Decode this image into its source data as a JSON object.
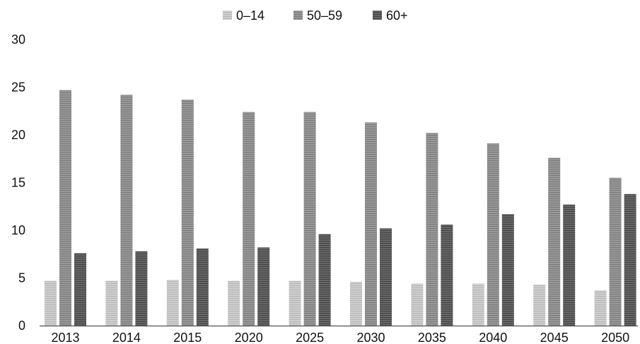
{
  "chart_data": {
    "type": "bar",
    "title": "",
    "xlabel": "",
    "ylabel": "",
    "categories": [
      "2013",
      "2014",
      "2015",
      "2020",
      "2025",
      "2030",
      "2035",
      "2040",
      "2045",
      "2050"
    ],
    "series": [
      {
        "name": "0–14",
        "values": [
          4.7,
          4.7,
          4.8,
          4.7,
          4.7,
          4.6,
          4.4,
          4.4,
          4.3,
          3.7
        ]
      },
      {
        "name": "50–59",
        "values": [
          24.7,
          24.2,
          23.7,
          22.4,
          22.4,
          21.3,
          20.2,
          19.1,
          17.6,
          15.5
        ]
      },
      {
        "name": "60+",
        "values": [
          7.6,
          7.8,
          8.1,
          8.2,
          9.6,
          10.2,
          10.6,
          11.7,
          12.7,
          13.8
        ]
      }
    ],
    "ylim": [
      0,
      30
    ],
    "yticks": [
      0,
      5,
      10,
      15,
      20,
      25,
      30
    ],
    "grid": false,
    "legend_position": "top-center",
    "colors": [
      "#c8c8c8",
      "#8e8e8e",
      "#5e5e5e"
    ]
  }
}
